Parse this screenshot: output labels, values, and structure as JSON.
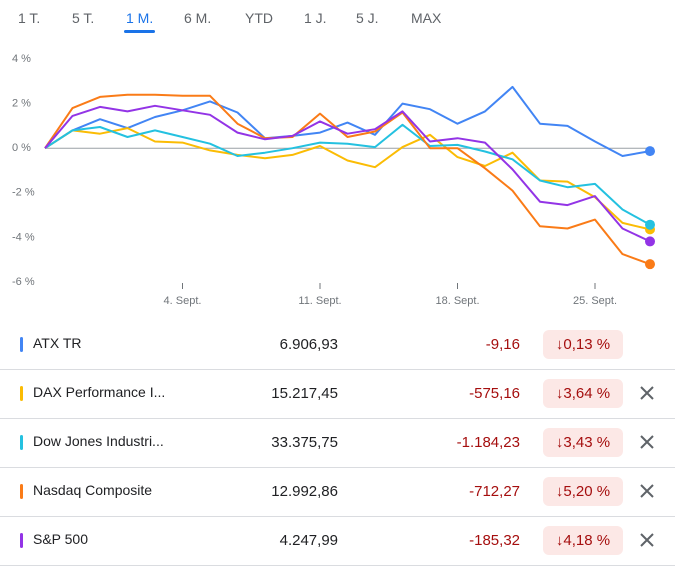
{
  "tabs": [
    "1 T.",
    "5 T.",
    "1 M.",
    "6 M.",
    "YTD",
    "1 J.",
    "5 J.",
    "MAX"
  ],
  "active_tab": 2,
  "chart_data": {
    "type": "line",
    "x": [
      0,
      1,
      2,
      3,
      4,
      5,
      6,
      7,
      8,
      9,
      10,
      11,
      12,
      13,
      14,
      15,
      16,
      17,
      18,
      19,
      20,
      21,
      22
    ],
    "xlim": [
      0,
      22
    ],
    "xticks": [
      {
        "value": 5,
        "label": "4. Sept."
      },
      {
        "value": 10,
        "label": "11. Sept."
      },
      {
        "value": 15,
        "label": "18. Sept."
      },
      {
        "value": 20,
        "label": "25. Sept."
      }
    ],
    "ylim": [
      -6,
      4
    ],
    "yticks": [
      {
        "value": 4,
        "label": "4 %"
      },
      {
        "value": 2,
        "label": "2 %"
      },
      {
        "value": 0,
        "label": "0 %"
      },
      {
        "value": -2,
        "label": "-2 %"
      },
      {
        "value": -4,
        "label": "-4 %"
      },
      {
        "value": -6,
        "label": "-6 %"
      }
    ],
    "grid": false,
    "series": [
      {
        "name": "ATX TR",
        "color": "#4285f4",
        "values": [
          0,
          0.8,
          1.3,
          0.9,
          1.4,
          1.7,
          2.1,
          1.6,
          0.45,
          0.55,
          0.7,
          1.15,
          0.6,
          2.0,
          1.75,
          1.1,
          1.65,
          2.75,
          1.1,
          1.0,
          0.3,
          -0.35,
          -0.13
        ]
      },
      {
        "name": "DAX Performance I...",
        "color": "#fbbc04",
        "values": [
          0,
          0.8,
          0.65,
          0.9,
          0.3,
          0.25,
          -0.1,
          -0.3,
          -0.45,
          -0.3,
          0.1,
          -0.55,
          -0.85,
          0.05,
          0.6,
          -0.4,
          -0.8,
          -0.2,
          -1.45,
          -1.5,
          -2.2,
          -3.35,
          -3.64
        ]
      },
      {
        "name": "Dow Jones Industri...",
        "color": "#24c1e0",
        "values": [
          0,
          0.8,
          0.95,
          0.5,
          0.8,
          0.5,
          0.2,
          -0.35,
          -0.2,
          0,
          0.25,
          0.2,
          0.05,
          1.05,
          0.1,
          0.15,
          -0.15,
          -0.5,
          -1.45,
          -1.75,
          -1.6,
          -2.75,
          -3.43
        ]
      },
      {
        "name": "Nasdaq Composite",
        "color": "#fa7b17",
        "values": [
          0,
          1.8,
          2.3,
          2.4,
          2.4,
          2.35,
          2.35,
          1.1,
          0.45,
          0.5,
          1.55,
          0.5,
          0.75,
          1.6,
          0,
          0,
          -0.9,
          -1.9,
          -3.5,
          -3.6,
          -3.2,
          -4.75,
          -5.2
        ]
      },
      {
        "name": "S&P 500",
        "color": "#9334e6",
        "values": [
          0,
          1.45,
          1.85,
          1.65,
          1.9,
          1.7,
          1.5,
          0.7,
          0.4,
          0.55,
          1.2,
          0.65,
          0.85,
          1.65,
          0.3,
          0.45,
          0.25,
          -0.95,
          -2.4,
          -2.55,
          -2.15,
          -3.6,
          -4.18
        ]
      }
    ]
  },
  "table": {
    "rows": [
      [
        "6.906,93",
        "-9,16",
        "↓0,13 %"
      ],
      [
        "15.217,45",
        "-575,16",
        "↓3,64 %"
      ],
      [
        "33.375,75",
        "-1.184,23",
        "↓3,43 %"
      ],
      [
        "12.992,86",
        "-712,27",
        "↓5,20 %"
      ],
      [
        "4.247,99",
        "-185,32",
        "↓4,18 %"
      ]
    ],
    "removable": [
      false,
      true,
      true,
      true,
      true
    ]
  }
}
